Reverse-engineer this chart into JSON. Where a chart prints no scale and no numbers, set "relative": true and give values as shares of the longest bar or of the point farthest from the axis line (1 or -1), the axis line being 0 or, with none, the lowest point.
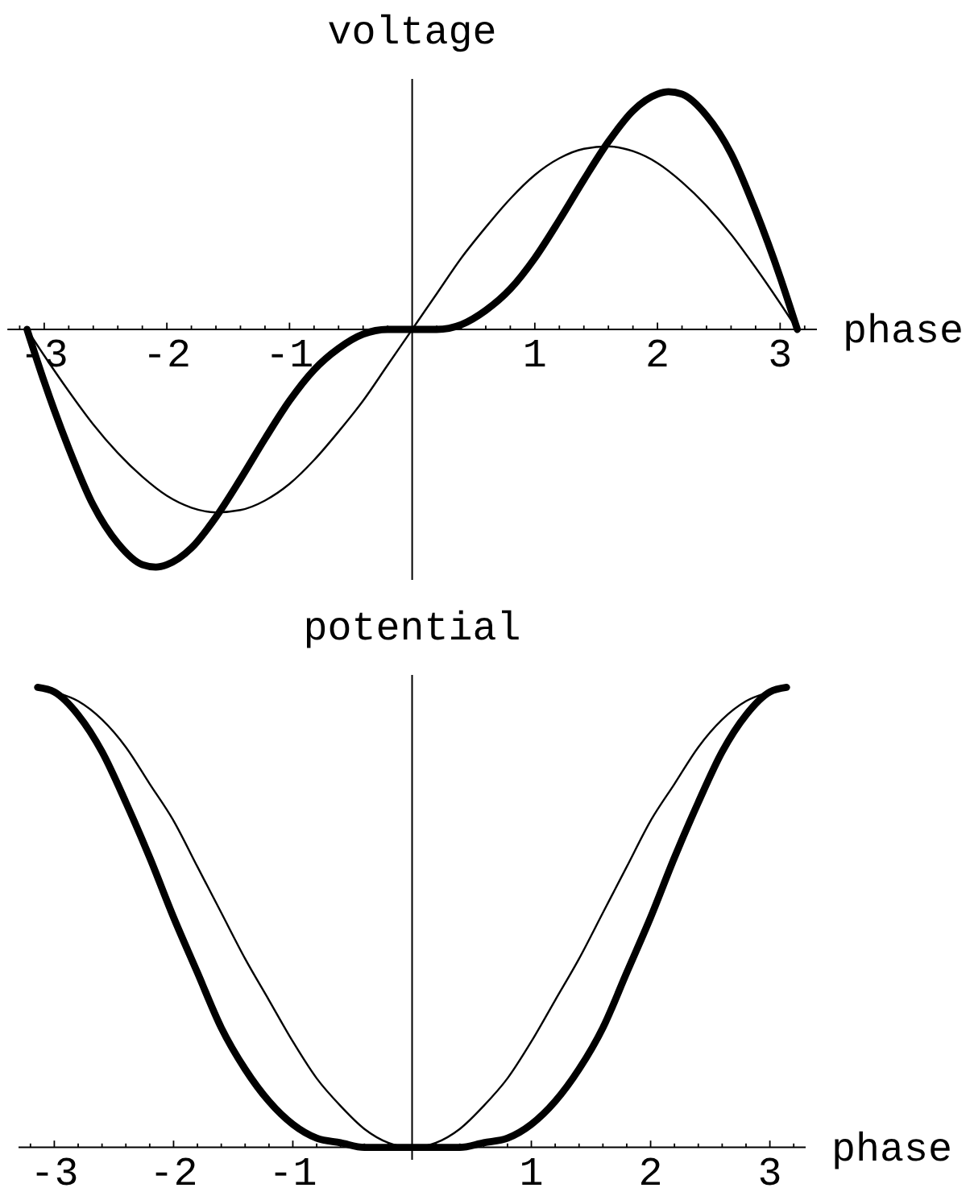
{
  "chart_data": [
    {
      "type": "line",
      "ylabel": "voltage",
      "xlabel": "phase",
      "relative": true,
      "xlim": [
        -3.3,
        3.3
      ],
      "xticks": [
        {
          "value": -3.2,
          "label": null
        },
        -3,
        {
          "value": -2.8,
          "label": null
        },
        {
          "value": -2.6,
          "label": null
        },
        {
          "value": -2.4,
          "label": null
        },
        {
          "value": -2.2,
          "label": null
        },
        -2,
        {
          "value": -1.8,
          "label": null
        },
        {
          "value": -1.6,
          "label": null
        },
        {
          "value": -1.4,
          "label": null
        },
        {
          "value": -1.2,
          "label": null
        },
        -1,
        {
          "value": -0.8,
          "label": null
        },
        {
          "value": -0.6,
          "label": null
        },
        {
          "value": -0.4,
          "label": null
        },
        {
          "value": -0.2,
          "label": null
        },
        {
          "value": 0.2,
          "label": null
        },
        {
          "value": 0.4,
          "label": null
        },
        {
          "value": 0.6,
          "label": null
        },
        {
          "value": 0.8,
          "label": null
        },
        1,
        {
          "value": 1.2,
          "label": null
        },
        {
          "value": 1.4,
          "label": null
        },
        {
          "value": 1.6,
          "label": null
        },
        {
          "value": 1.8,
          "label": null
        },
        2,
        {
          "value": 2.2,
          "label": null
        },
        {
          "value": 2.4,
          "label": null
        },
        {
          "value": 2.6,
          "label": null
        },
        {
          "value": 2.8,
          "label": null
        },
        3,
        {
          "value": 3.2,
          "label": null
        }
      ],
      "x": [
        -3.14,
        -3,
        -2.8,
        -2.6,
        -2.4,
        -2.2,
        -2,
        -1.8,
        -1.6,
        -1.4,
        -1.2,
        -1,
        -0.8,
        -0.6,
        -0.4,
        -0.2,
        0,
        0.2,
        0.4,
        0.6,
        0.8,
        1,
        1.2,
        1.4,
        1.6,
        1.8,
        2,
        2.2,
        2.4,
        2.6,
        2.8,
        3,
        3.14
      ],
      "series": [
        {
          "color": "#000000",
          "x": [
            -3.14,
            -3,
            -2.8,
            -2.6,
            -2.4,
            -2.2,
            -2.09,
            -2,
            -1.8,
            -1.6,
            -1.4,
            -1.2,
            -1,
            -0.8,
            -0.6,
            -0.4,
            -0.2,
            0,
            0.2,
            0.4,
            0.6,
            0.8,
            1,
            1.2,
            1.4,
            1.6,
            1.8,
            2,
            2.09,
            2.2,
            2.4,
            2.6,
            2.8,
            3,
            3.14
          ],
          "values": [
            0,
            -0.22,
            -0.5,
            -0.74,
            -0.9,
            -0.99,
            -1,
            -0.99,
            -0.92,
            -0.79,
            -0.63,
            -0.46,
            -0.3,
            -0.17,
            -0.08,
            -0.02,
            0,
            0,
            0,
            0.02,
            0.08,
            0.17,
            0.3,
            0.46,
            0.63,
            0.79,
            0.92,
            0.99,
            1,
            0.99,
            0.9,
            0.74,
            0.5,
            0.22,
            0
          ]
        },
        {
          "color": "#000000",
          "values": [
            0,
            -0.11,
            -0.26,
            -0.4,
            -0.52,
            -0.62,
            -0.7,
            -0.75,
            -0.77,
            -0.76,
            -0.72,
            -0.65,
            -0.55,
            -0.43,
            -0.3,
            -0.15,
            0,
            0.15,
            0.3,
            0.43,
            0.55,
            0.65,
            0.72,
            0.76,
            0.77,
            0.75,
            0.7,
            0.62,
            0.52,
            0.4,
            0.26,
            0.11,
            0
          ]
        }
      ]
    },
    {
      "type": "line",
      "ylabel": "potential",
      "xlabel": "phase",
      "relative": true,
      "xlim": [
        -3.3,
        3.3
      ],
      "xticks": [
        {
          "value": -3.2,
          "label": null
        },
        -3,
        {
          "value": -2.8,
          "label": null
        },
        {
          "value": -2.6,
          "label": null
        },
        {
          "value": -2.4,
          "label": null
        },
        {
          "value": -2.2,
          "label": null
        },
        -2,
        {
          "value": -1.8,
          "label": null
        },
        {
          "value": -1.6,
          "label": null
        },
        {
          "value": -1.4,
          "label": null
        },
        {
          "value": -1.2,
          "label": null
        },
        -1,
        {
          "value": -0.8,
          "label": null
        },
        {
          "value": -0.6,
          "label": null
        },
        {
          "value": -0.4,
          "label": null
        },
        {
          "value": -0.2,
          "label": null
        },
        {
          "value": 0.2,
          "label": null
        },
        {
          "value": 0.4,
          "label": null
        },
        {
          "value": 0.6,
          "label": null
        },
        {
          "value": 0.8,
          "label": null
        },
        1,
        {
          "value": 1.2,
          "label": null
        },
        {
          "value": 1.4,
          "label": null
        },
        {
          "value": 1.6,
          "label": null
        },
        {
          "value": 1.8,
          "label": null
        },
        2,
        {
          "value": 2.2,
          "label": null
        },
        {
          "value": 2.4,
          "label": null
        },
        {
          "value": 2.6,
          "label": null
        },
        {
          "value": 2.8,
          "label": null
        },
        3,
        {
          "value": 3.2,
          "label": null
        }
      ],
      "x": [
        -3.14,
        -3,
        -2.8,
        -2.6,
        -2.4,
        -2.2,
        -2,
        -1.8,
        -1.6,
        -1.4,
        -1.2,
        -1,
        -0.8,
        -0.6,
        -0.4,
        -0.2,
        0,
        0.2,
        0.4,
        0.6,
        0.8,
        1,
        1.2,
        1.4,
        1.6,
        1.8,
        2,
        2.2,
        2.4,
        2.6,
        2.8,
        3,
        3.14
      ],
      "series": [
        {
          "color": "#000000",
          "values": [
            1,
            0.99,
            0.94,
            0.86,
            0.75,
            0.63,
            0.5,
            0.38,
            0.26,
            0.17,
            0.1,
            0.05,
            0.02,
            0.01,
            0,
            0,
            0,
            0,
            0,
            0.01,
            0.02,
            0.05,
            0.1,
            0.17,
            0.26,
            0.38,
            0.5,
            0.63,
            0.75,
            0.86,
            0.94,
            0.99,
            1
          ]
        },
        {
          "color": "#000000",
          "values": [
            1,
            0.99,
            0.97,
            0.93,
            0.87,
            0.79,
            0.71,
            0.61,
            0.51,
            0.41,
            0.32,
            0.23,
            0.15,
            0.09,
            0.04,
            0.01,
            0,
            0.01,
            0.04,
            0.09,
            0.15,
            0.23,
            0.32,
            0.41,
            0.51,
            0.61,
            0.71,
            0.79,
            0.87,
            0.93,
            0.97,
            0.99,
            1
          ]
        }
      ]
    }
  ]
}
